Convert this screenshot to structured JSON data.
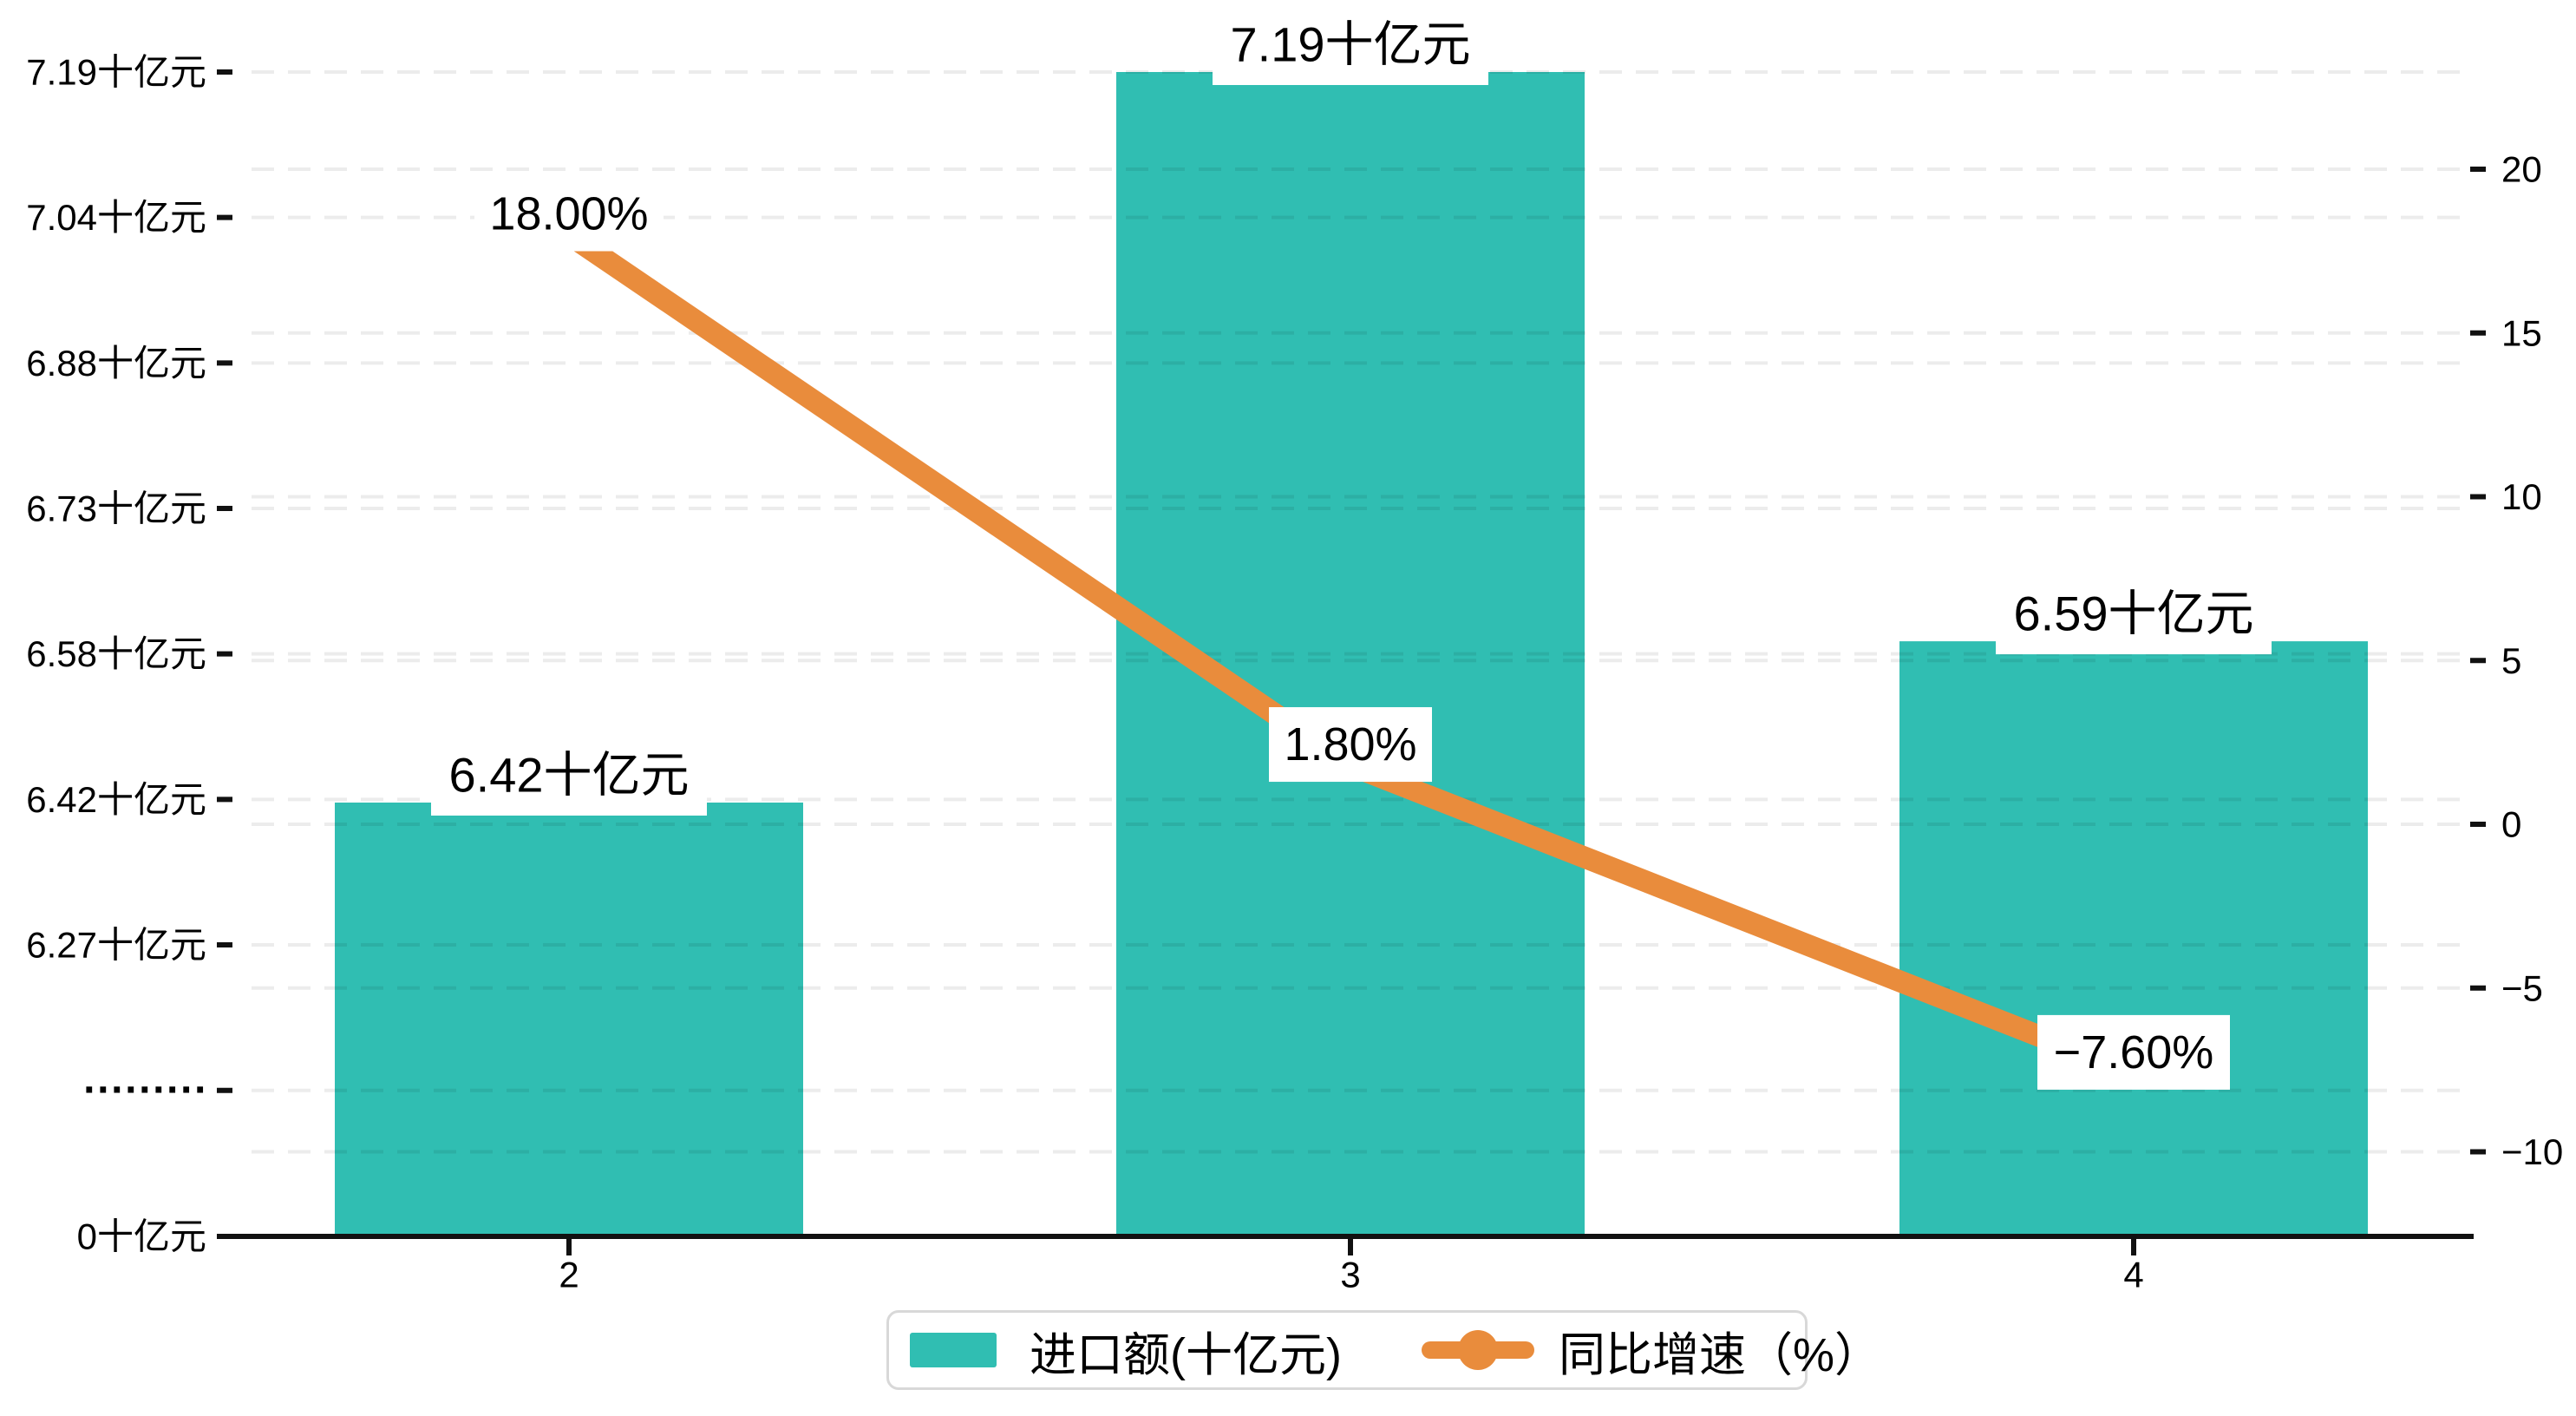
{
  "chart_data": {
    "type": "bar",
    "subtype": "combo-bar-line-dual-axis",
    "categories": [
      "2",
      "3",
      "4"
    ],
    "series": [
      {
        "name": "进口额(十亿元)",
        "type": "bar",
        "axis": "left",
        "values": [
          6.42,
          7.19,
          6.59
        ],
        "labels": [
          "6.42十亿元",
          "7.19十亿元",
          "6.59十亿元"
        ],
        "color": "#30beb2"
      },
      {
        "name": "同比增速（%）",
        "type": "line",
        "axis": "right",
        "values": [
          18.0,
          1.8,
          -7.6
        ],
        "labels": [
          "18.00%",
          "1.80%",
          "−7.60%"
        ],
        "color": "#e98c3c"
      }
    ],
    "left_axis": {
      "tick_labels": [
        "7.19十亿元",
        "7.04十亿元",
        "6.88十亿元",
        "6.73十亿元",
        "6.58十亿元",
        "6.42十亿元",
        "6.27十亿元"
      ],
      "tick_values": [
        7.19,
        7.04,
        6.88,
        6.73,
        6.58,
        6.42,
        6.27
      ],
      "axis_break_label": "·········",
      "zero_label": "0十亿元",
      "broken_axis": true
    },
    "right_axis": {
      "tick_labels": [
        "20",
        "15",
        "10",
        "5",
        "0",
        "−5",
        "−10"
      ],
      "tick_values": [
        20,
        15,
        10,
        5,
        0,
        -5,
        -10
      ]
    },
    "grid": "dashed horizontal gridlines for both axes",
    "legend_position": "bottom-center",
    "colors": {
      "bar": "#30beb2",
      "line": "#e98c3c",
      "axis": "#111111",
      "gridline": "rgba(0,0,0,0.075)",
      "legend_border": "#d8d8d8",
      "label_background": "#ffffff"
    }
  }
}
